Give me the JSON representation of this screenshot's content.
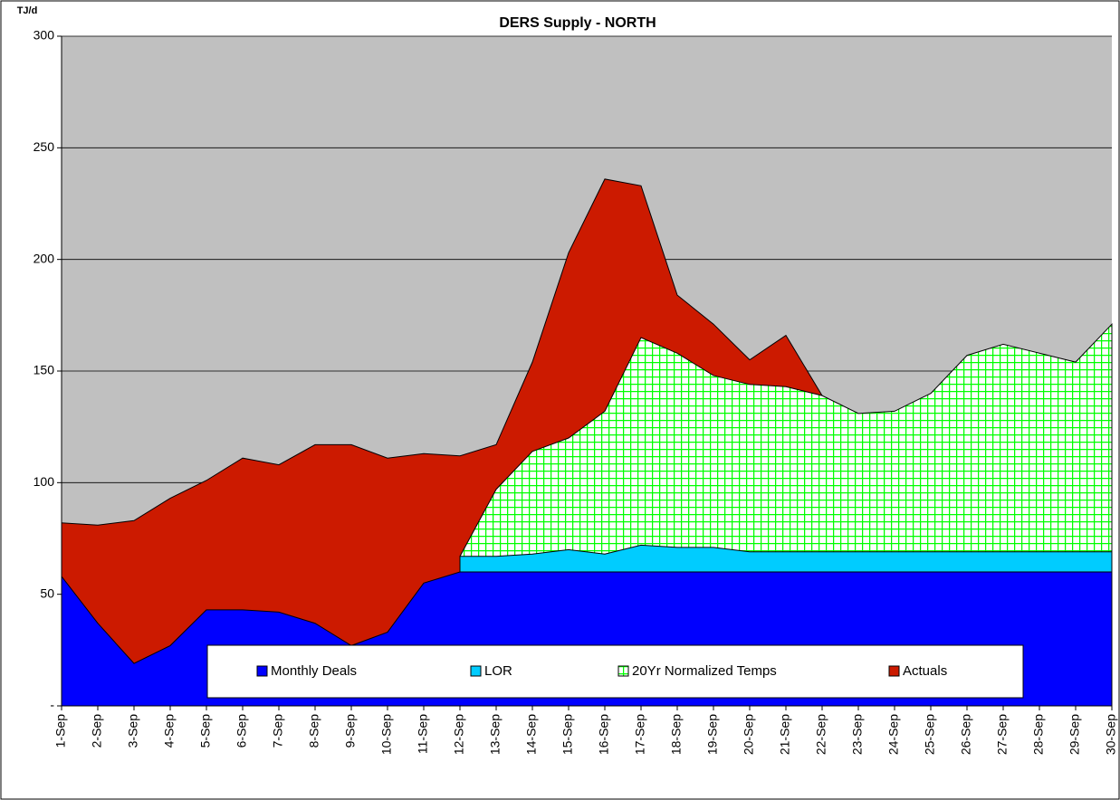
{
  "chart_data": {
    "type": "area",
    "title": "DERS Supply - NORTH",
    "y_label": "TJ/d",
    "categories": [
      "1-Sep",
      "2-Sep",
      "3-Sep",
      "4-Sep",
      "5-Sep",
      "6-Sep",
      "7-Sep",
      "8-Sep",
      "9-Sep",
      "10-Sep",
      "11-Sep",
      "12-Sep",
      "13-Sep",
      "14-Sep",
      "15-Sep",
      "16-Sep",
      "17-Sep",
      "18-Sep",
      "19-Sep",
      "20-Sep",
      "21-Sep",
      "22-Sep",
      "23-Sep",
      "24-Sep",
      "25-Sep",
      "26-Sep",
      "27-Sep",
      "28-Sep",
      "29-Sep",
      "30-Sep"
    ],
    "series": [
      {
        "name": "Actuals",
        "color": "#cc1a00",
        "values": [
          82,
          81,
          83,
          93,
          101,
          111,
          108,
          117,
          117,
          111,
          113,
          112,
          117,
          154,
          203,
          236,
          233,
          184,
          171,
          155,
          166,
          139,
          null,
          null,
          null,
          null,
          null,
          null,
          null,
          null
        ]
      },
      {
        "name": "20Yr Normalized Temps",
        "color": "#00ff00",
        "pattern": "grid",
        "values": [
          null,
          null,
          null,
          null,
          null,
          null,
          null,
          null,
          null,
          null,
          null,
          67,
          97,
          114,
          120,
          132,
          165,
          158,
          148,
          144,
          143,
          139,
          131,
          132,
          140,
          157,
          162,
          158,
          154,
          171
        ]
      },
      {
        "name": "LOR",
        "color": "#00ccff",
        "values": [
          null,
          null,
          null,
          null,
          null,
          null,
          null,
          null,
          null,
          null,
          null,
          67,
          67,
          68,
          70,
          68,
          72,
          71,
          71,
          69,
          69,
          69,
          69,
          69,
          69,
          69,
          69,
          69,
          69,
          69
        ]
      },
      {
        "name": "Monthly Deals",
        "color": "#0000ff",
        "values": [
          58,
          37,
          19,
          27,
          43,
          43,
          42,
          37,
          27,
          33,
          55,
          60,
          60,
          60,
          60,
          60,
          60,
          60,
          60,
          60,
          60,
          60,
          60,
          60,
          60,
          60,
          60,
          60,
          60,
          60
        ]
      }
    ],
    "legend_order": [
      3,
      2,
      1,
      0
    ],
    "ylim": [
      0,
      300
    ],
    "yticks": [
      {
        "value": 0,
        "label": "-"
      },
      50,
      100,
      150,
      200,
      250,
      300
    ],
    "grid": true,
    "background": "#c0c0c0"
  }
}
